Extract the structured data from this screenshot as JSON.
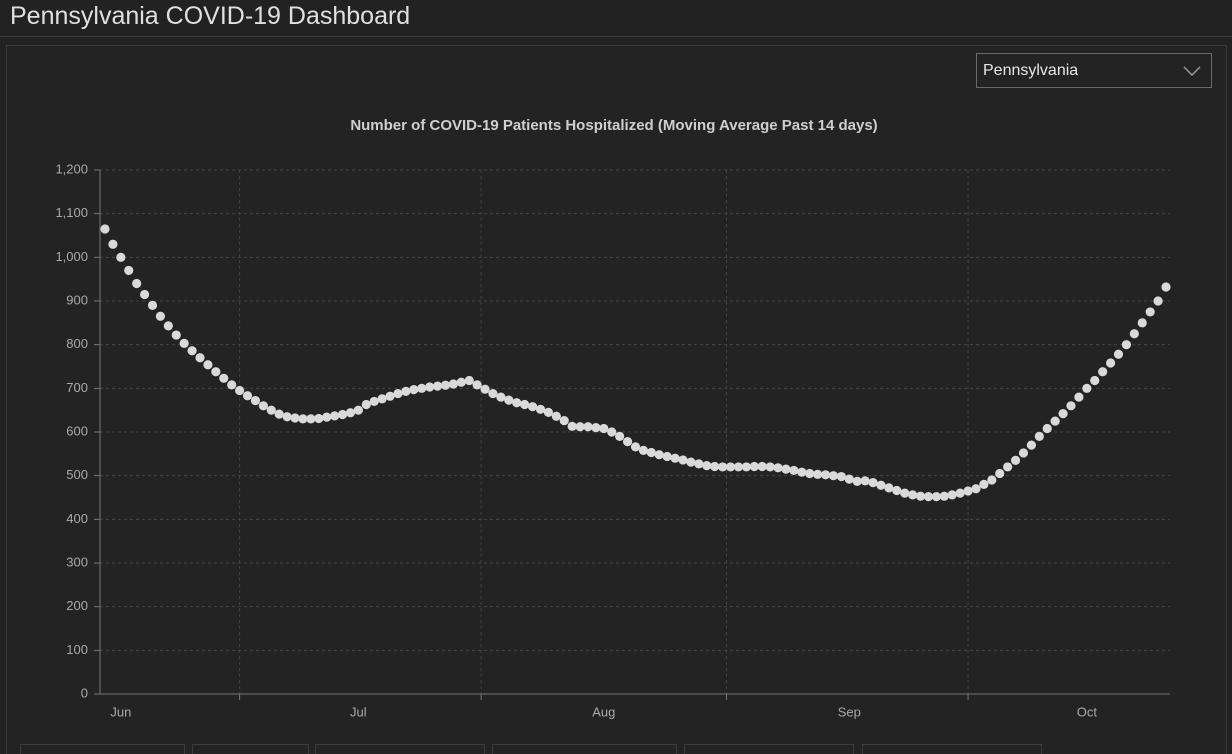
{
  "header": {
    "title": "Pennsylvania COVID-19 Dashboard"
  },
  "dropdown": {
    "value": "Pennsylvania"
  },
  "chart_data": {
    "type": "scatter",
    "title": "Number of COVID-19 Patients Hospitalized (Moving Average Past 14 days)",
    "color": "#d9d9d9",
    "grid": true,
    "categories": [
      null,
      null,
      "Jun",
      null,
      null,
      null,
      null,
      null,
      null,
      null,
      null,
      null,
      null,
      null,
      null,
      null,
      null,
      null,
      null,
      null,
      null,
      null,
      null,
      null,
      null,
      null,
      null,
      null,
      null,
      null,
      null,
      null,
      "Jul",
      null,
      null,
      null,
      null,
      null,
      null,
      null,
      null,
      null,
      null,
      null,
      null,
      null,
      null,
      null,
      null,
      null,
      null,
      null,
      null,
      null,
      null,
      null,
      null,
      null,
      null,
      null,
      null,
      null,
      null,
      "Aug",
      null,
      null,
      null,
      null,
      null,
      null,
      null,
      null,
      null,
      null,
      null,
      null,
      null,
      null,
      null,
      null,
      null,
      null,
      null,
      null,
      null,
      null,
      null,
      null,
      null,
      null,
      null,
      null,
      null,
      null,
      "Sep",
      null,
      null,
      null,
      null,
      null,
      null,
      null,
      null,
      null,
      null,
      null,
      null,
      null,
      null,
      null,
      null,
      null,
      null,
      null,
      null,
      null,
      null,
      null,
      null,
      null,
      null,
      null,
      null,
      null,
      "Oct",
      null,
      null,
      null,
      null,
      null,
      null,
      null,
      null,
      null,
      null
    ],
    "values": [
      1065,
      1030,
      1000,
      970,
      940,
      915,
      890,
      865,
      843,
      822,
      803,
      786,
      770,
      754,
      738,
      723,
      708,
      695,
      683,
      672,
      660,
      650,
      641,
      635,
      632,
      630,
      630,
      631,
      634,
      637,
      640,
      644,
      650,
      663,
      670,
      676,
      682,
      688,
      693,
      697,
      700,
      703,
      705,
      707,
      710,
      714,
      718,
      708,
      698,
      688,
      680,
      673,
      667,
      663,
      658,
      652,
      645,
      636,
      626,
      613,
      612,
      612,
      610,
      608,
      600,
      590,
      578,
      566,
      558,
      553,
      548,
      544,
      540,
      536,
      531,
      527,
      523,
      521,
      520,
      520,
      520,
      520,
      521,
      521,
      520,
      518,
      515,
      512,
      508,
      505,
      503,
      502,
      500,
      498,
      492,
      487,
      488,
      484,
      478,
      472,
      466,
      460,
      456,
      453,
      452,
      452,
      453,
      456,
      460,
      465,
      470,
      480,
      490,
      505,
      520,
      535,
      552,
      570,
      590,
      608,
      625,
      642,
      660,
      680,
      700,
      718,
      738,
      758,
      778,
      800,
      825,
      850,
      875,
      900,
      932
    ],
    "ylim": [
      0,
      1200
    ],
    "yticks": [
      0,
      100,
      200,
      300,
      400,
      500,
      600,
      700,
      800,
      900,
      {
        "value": 1000,
        "label": "1,000"
      },
      {
        "value": 1100,
        "label": "1,100"
      },
      {
        "value": 1200,
        "label": "1,200"
      }
    ]
  }
}
